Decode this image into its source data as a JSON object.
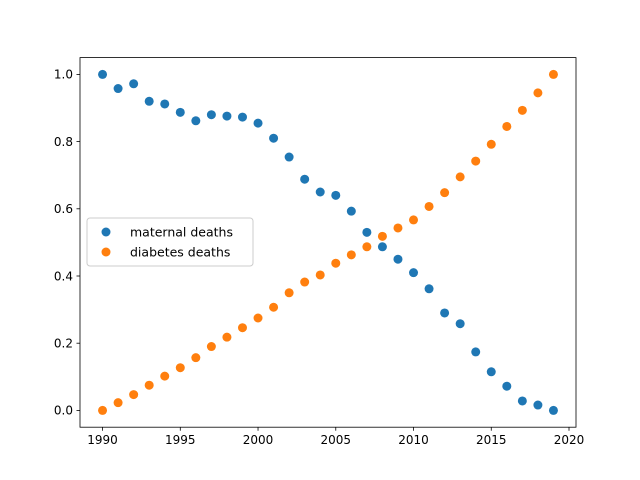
{
  "chart_data": {
    "type": "scatter",
    "title": "",
    "xlabel": "",
    "ylabel": "",
    "xlim": [
      1988.55,
      2020.45
    ],
    "ylim": [
      -0.05,
      1.05
    ],
    "xticks": [
      1990,
      1995,
      2000,
      2005,
      2010,
      2015,
      2020
    ],
    "yticks": [
      0.0,
      0.2,
      0.4,
      0.6,
      0.8,
      1.0
    ],
    "x": [
      1990,
      1991,
      1992,
      1993,
      1994,
      1995,
      1996,
      1997,
      1998,
      1999,
      2000,
      2001,
      2002,
      2003,
      2004,
      2005,
      2006,
      2007,
      2008,
      2009,
      2010,
      2011,
      2012,
      2013,
      2014,
      2015,
      2016,
      2017,
      2018,
      2019
    ],
    "grid": false,
    "legend": "center-left",
    "series": [
      {
        "name": "maternal deaths",
        "color": "#1f77b4",
        "values": [
          1.0,
          0.958,
          0.972,
          0.92,
          0.912,
          0.887,
          0.862,
          0.88,
          0.876,
          0.873,
          0.855,
          0.81,
          0.754,
          0.688,
          0.65,
          0.64,
          0.593,
          0.53,
          0.487,
          0.45,
          0.41,
          0.362,
          0.29,
          0.258,
          0.174,
          0.115,
          0.072,
          0.028,
          0.016,
          0.0
        ]
      },
      {
        "name": "diabetes deaths",
        "color": "#ff7f0e",
        "values": [
          0.0,
          0.023,
          0.047,
          0.075,
          0.102,
          0.127,
          0.157,
          0.19,
          0.218,
          0.246,
          0.275,
          0.307,
          0.35,
          0.382,
          0.403,
          0.438,
          0.463,
          0.487,
          0.518,
          0.543,
          0.567,
          0.607,
          0.648,
          0.695,
          0.742,
          0.792,
          0.845,
          0.893,
          0.945,
          1.0
        ]
      }
    ]
  }
}
